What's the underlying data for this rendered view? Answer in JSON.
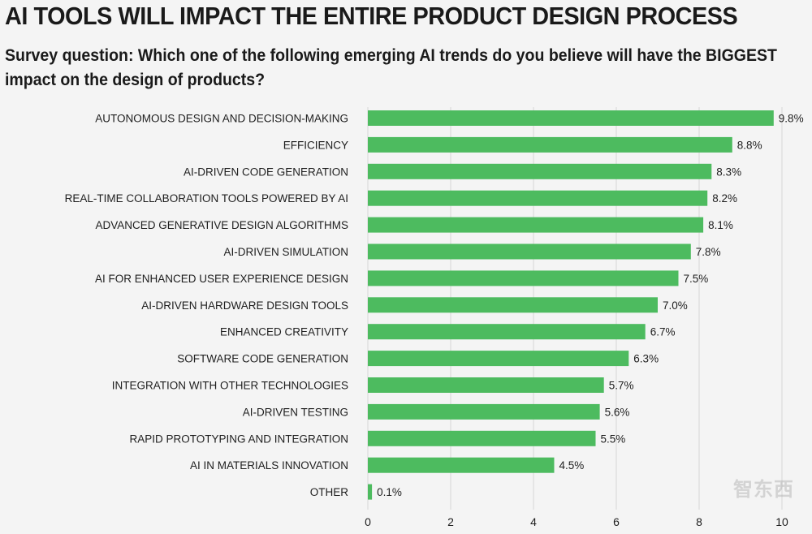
{
  "chart_data": {
    "type": "bar",
    "orientation": "horizontal",
    "title": "AI TOOLS WILL IMPACT THE ENTIRE PRODUCT DESIGN PROCESS",
    "subtitle": "Survey question: Which one of the following emerging AI trends do you believe will have the BIGGEST impact on the design of products?",
    "categories": [
      "AUTONOMOUS DESIGN AND DECISION-MAKING",
      "EFFICIENCY",
      "AI-DRIVEN CODE GENERATION",
      "REAL-TIME COLLABORATION TOOLS POWERED BY AI",
      "ADVANCED GENERATIVE DESIGN ALGORITHMS",
      "AI-DRIVEN SIMULATION",
      "AI FOR ENHANCED USER EXPERIENCE DESIGN",
      "AI-DRIVEN HARDWARE DESIGN TOOLS",
      "ENHANCED CREATIVITY",
      "SOFTWARE CODE GENERATION",
      "INTEGRATION WITH OTHER TECHNOLOGIES",
      "AI-DRIVEN TESTING",
      "RAPID PROTOTYPING AND INTEGRATION",
      "AI IN MATERIALS INNOVATION",
      "OTHER"
    ],
    "values": [
      9.8,
      8.8,
      8.3,
      8.2,
      8.1,
      7.8,
      7.5,
      7.0,
      6.7,
      6.3,
      5.7,
      5.6,
      5.5,
      4.5,
      0.1
    ],
    "value_labels": [
      "9.8%",
      "8.8%",
      "8.3%",
      "8.2%",
      "8.1%",
      "7.8%",
      "7.5%",
      "7.0%",
      "6.7%",
      "6.3%",
      "5.7%",
      "5.6%",
      "5.5%",
      "4.5%",
      "0.1%"
    ],
    "xticks": [
      0,
      2,
      4,
      6,
      8,
      10
    ],
    "xlim": [
      0,
      10
    ],
    "grid": true,
    "legend": "none",
    "bar_color": "#4dbb5f",
    "grid_color": "#d6d6d6"
  },
  "watermark": "智东西"
}
